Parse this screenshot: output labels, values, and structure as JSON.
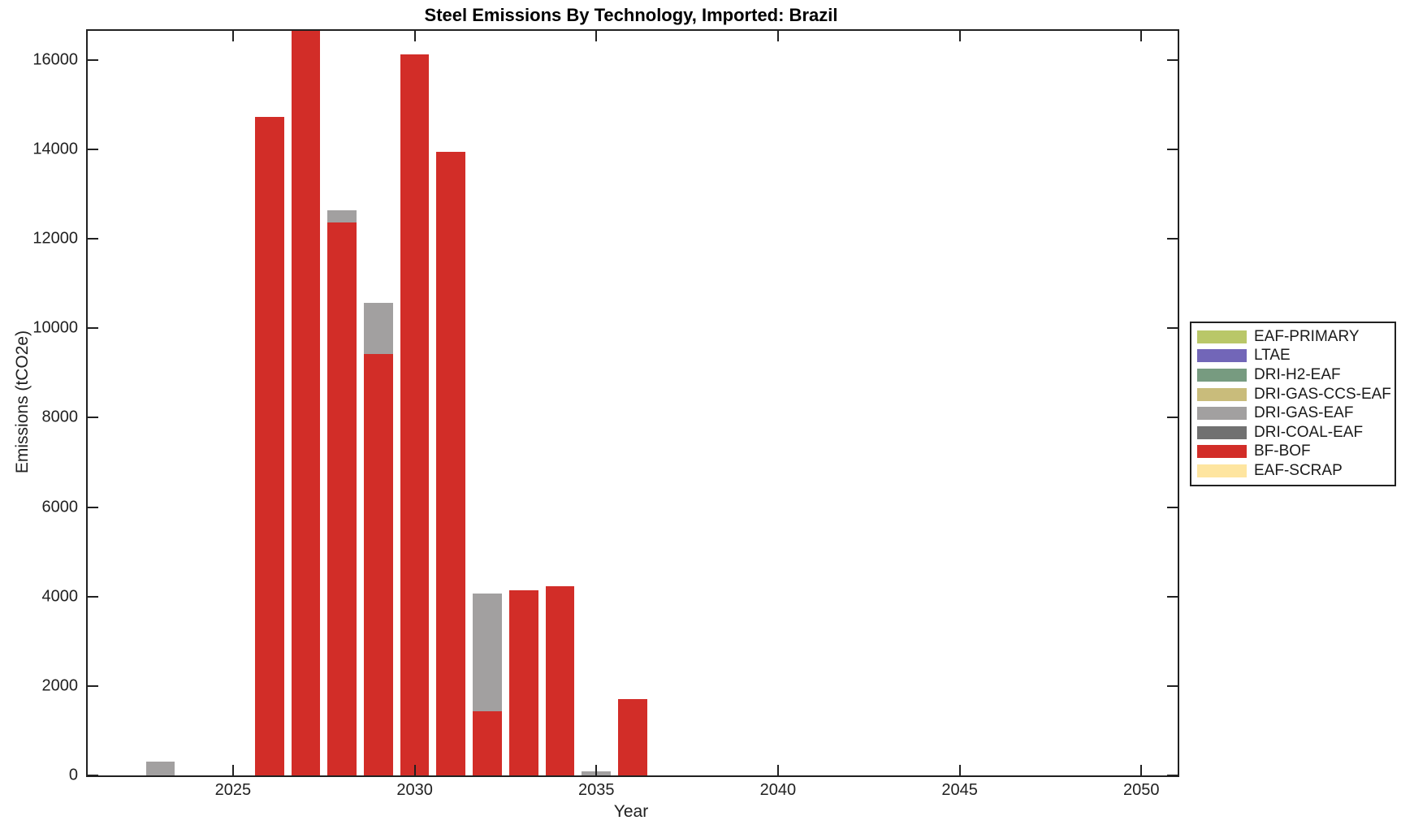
{
  "figure": {
    "title": "Steel Emissions By Technology, Imported: Brazil",
    "xlabel": "Year",
    "ylabel": "Emissions (tCO2e)"
  },
  "chart_data": {
    "type": "bar",
    "stacked": true,
    "title": "Steel Emissions By Technology, Imported: Brazil",
    "xlabel": "Year",
    "ylabel": "Emissions (tCO2e)",
    "xlim": [
      2021,
      2051
    ],
    "ylim": [
      0,
      16650
    ],
    "xticks": [
      2025,
      2030,
      2035,
      2040,
      2045,
      2050
    ],
    "xtick_labels": [
      "2025",
      "2030",
      "2035",
      "2040",
      "2045",
      "2050"
    ],
    "yticks": [
      0,
      2000,
      4000,
      6000,
      8000,
      10000,
      12000,
      14000,
      16000
    ],
    "ytick_labels": [
      "0",
      "2000",
      "4000",
      "6000",
      "8000",
      "10000",
      "12000",
      "14000",
      "16000"
    ],
    "grid": false,
    "bar_width_years": 0.8,
    "legend_position": "outside-right",
    "categories": [
      2023,
      2026,
      2027,
      2028,
      2029,
      2030,
      2031,
      2032,
      2033,
      2034,
      2035,
      2036
    ],
    "series": [
      {
        "name": "BF-BOF",
        "color": "#d22d28",
        "values": [
          0,
          14730,
          16650,
          12370,
          9420,
          16120,
          13950,
          1440,
          4140,
          4230,
          0,
          1700
        ]
      },
      {
        "name": "DRI-GAS-EAF",
        "color": "#a2a0a0",
        "values": [
          300,
          0,
          0,
          260,
          1140,
          0,
          0,
          2620,
          0,
          0,
          90,
          0
        ]
      }
    ],
    "legend": [
      {
        "label": "EAF-PRIMARY",
        "color": "#b9c768"
      },
      {
        "label": "LTAE",
        "color": "#7266b8"
      },
      {
        "label": "DRI-H2-EAF",
        "color": "#779b80"
      },
      {
        "label": "DRI-GAS-CCS-EAF",
        "color": "#c9bc7b"
      },
      {
        "label": "DRI-GAS-EAF",
        "color": "#a2a0a0"
      },
      {
        "label": "DRI-COAL-EAF",
        "color": "#717171"
      },
      {
        "label": "BF-BOF",
        "color": "#d22d28"
      },
      {
        "label": "EAF-SCRAP",
        "color": "#fee5a0"
      }
    ]
  }
}
